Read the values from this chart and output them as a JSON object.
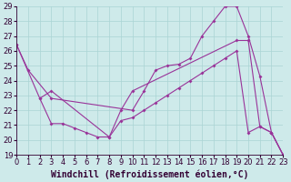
{
  "xlabel": "Windchill (Refroidissement éolien,°C)",
  "bg_color": "#ceeaea",
  "line_color": "#993399",
  "xmin": 0,
  "xmax": 23,
  "ymin": 19,
  "ymax": 29,
  "yticks": [
    19,
    20,
    21,
    22,
    23,
    24,
    25,
    26,
    27,
    28,
    29
  ],
  "xticks": [
    0,
    1,
    2,
    3,
    4,
    5,
    6,
    7,
    8,
    9,
    10,
    11,
    12,
    13,
    14,
    15,
    16,
    17,
    18,
    19,
    20,
    21,
    22,
    23
  ],
  "line1_x": [
    0,
    1,
    3,
    10,
    11,
    12,
    13,
    14,
    15,
    16,
    17,
    18,
    19,
    20,
    21,
    22,
    23
  ],
  "line1_y": [
    26.4,
    24.7,
    22.8,
    22.0,
    23.3,
    24.7,
    25.0,
    25.1,
    25.5,
    27.0,
    28.0,
    29.0,
    29.0,
    27.0,
    24.3,
    20.5,
    19.0
  ],
  "line2_x": [
    0,
    2,
    3,
    8,
    9,
    10,
    19,
    20,
    21,
    22,
    23
  ],
  "line2_y": [
    26.4,
    22.8,
    23.3,
    20.2,
    22.0,
    23.3,
    26.7,
    26.7,
    20.9,
    20.5,
    19.0
  ],
  "line3_x": [
    2,
    3,
    4,
    5,
    6,
    7,
    8,
    9,
    10,
    11,
    12,
    13,
    14,
    15,
    16,
    17,
    18,
    19,
    20,
    21,
    22,
    23
  ],
  "line3_y": [
    22.8,
    21.1,
    21.1,
    20.8,
    20.5,
    20.2,
    20.2,
    21.3,
    21.5,
    22.0,
    22.5,
    23.0,
    23.5,
    24.0,
    24.5,
    25.0,
    25.5,
    26.0,
    20.5,
    20.9,
    20.5,
    19.0
  ],
  "grid_color": "#aad4d4",
  "xlabel_fontsize": 7,
  "tick_fontsize": 6,
  "axis_label_color": "#330033"
}
